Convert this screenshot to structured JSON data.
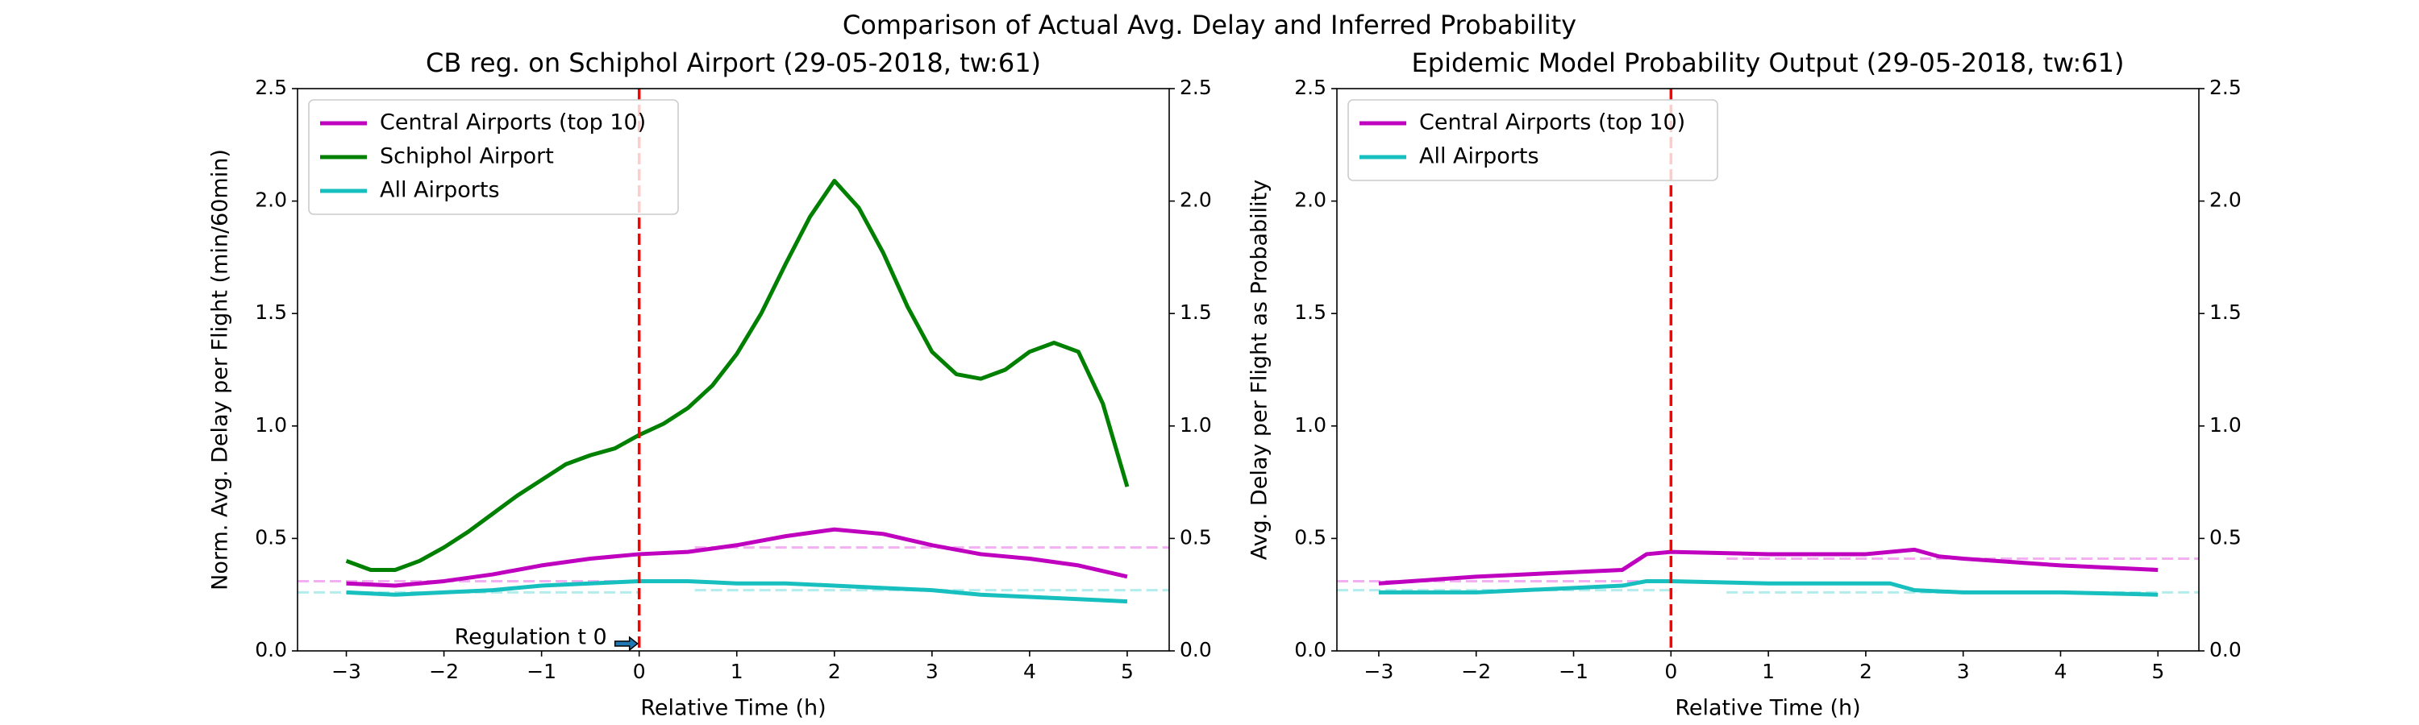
{
  "title": "Comparison of Actual Avg. Delay and Inferred Probability",
  "chart_data": [
    {
      "type": "line",
      "title": "CB reg. on Schiphol Airport (29-05-2018, tw:61)",
      "xlabel": "Relative Time (h)",
      "ylabel": "Norm. Avg. Delay per Flight (min/60min)",
      "xlim": [
        -3.5,
        5.43
      ],
      "ylim": [
        0,
        2.5
      ],
      "y2lim": [
        0,
        2.5
      ],
      "xticks": [
        {
          "value": -3,
          "label": "−3"
        },
        {
          "value": -2,
          "label": "−2"
        },
        {
          "value": -1,
          "label": "−1"
        },
        0,
        1,
        2,
        3,
        4,
        5
      ],
      "yticks": [
        {
          "value": 0,
          "label": "0.0"
        },
        {
          "value": 0.5,
          "label": "0.5"
        },
        {
          "value": 1,
          "label": "1.0"
        },
        {
          "value": 1.5,
          "label": "1.5"
        },
        {
          "value": 2,
          "label": "2.0"
        },
        {
          "value": 2.5,
          "label": "2.5"
        }
      ],
      "y2ticks": [
        {
          "value": 0,
          "label": "0.0"
        },
        {
          "value": 0.5,
          "label": "0.5"
        },
        {
          "value": 1,
          "label": "1.0"
        },
        {
          "value": 1.5,
          "label": "1.5"
        },
        {
          "value": 2,
          "label": "2.0"
        },
        {
          "value": 2.5,
          "label": "2.5"
        }
      ],
      "legend": "upper left",
      "vline": {
        "x": 0,
        "color": "#ff0000"
      },
      "annotation": "Regulation t  0",
      "series": [
        {
          "name": "Central Airports (top 10)",
          "color": "#bf00bf",
          "x": [
            -3,
            -2.5,
            -2,
            -1.5,
            -1,
            -0.5,
            0,
            0.5,
            1,
            1.5,
            2,
            2.5,
            3,
            3.5,
            4,
            4.5,
            5
          ],
          "values": [
            0.3,
            0.29,
            0.31,
            0.34,
            0.38,
            0.41,
            0.43,
            0.44,
            0.47,
            0.51,
            0.54,
            0.52,
            0.47,
            0.43,
            0.41,
            0.38,
            0.33
          ]
        },
        {
          "name": "Schiphol Airport",
          "color": "#008000",
          "x": [
            -3,
            -2.75,
            -2.5,
            -2.25,
            -2,
            -1.75,
            -1.5,
            -1.25,
            -1,
            -0.75,
            -0.5,
            -0.25,
            0,
            0.25,
            0.5,
            0.75,
            1,
            1.25,
            1.5,
            1.75,
            2,
            2.25,
            2.5,
            2.75,
            3,
            3.25,
            3.5,
            3.75,
            4,
            4.25,
            4.5,
            4.75,
            5
          ],
          "values": [
            0.4,
            0.36,
            0.36,
            0.4,
            0.46,
            0.53,
            0.61,
            0.69,
            0.76,
            0.83,
            0.87,
            0.9,
            0.96,
            1.01,
            1.08,
            1.18,
            1.32,
            1.5,
            1.72,
            1.93,
            2.09,
            1.97,
            1.77,
            1.53,
            1.33,
            1.23,
            1.21,
            1.25,
            1.33,
            1.37,
            1.33,
            1.1,
            0.73
          ]
        },
        {
          "name": "All Airports",
          "color": "#17bfbf",
          "x": [
            -3,
            -2.5,
            -2,
            -1.5,
            -1,
            -0.5,
            0,
            0.5,
            1,
            1.5,
            2,
            2.5,
            3,
            3.5,
            4,
            4.5,
            5
          ],
          "values": [
            0.26,
            0.25,
            0.26,
            0.27,
            0.29,
            0.3,
            0.31,
            0.31,
            0.3,
            0.3,
            0.29,
            0.28,
            0.27,
            0.25,
            0.24,
            0.23,
            0.22
          ]
        }
      ],
      "reference_lines": [
        {
          "color": "#f2b0f2",
          "x": [
            -3.5,
            0
          ],
          "values": [
            0.31,
            0.31
          ]
        },
        {
          "color": "#f2b0f2",
          "x": [
            0.57,
            5.43
          ],
          "values": [
            0.46,
            0.46
          ]
        },
        {
          "color": "#b3ecec",
          "x": [
            -3.5,
            0
          ],
          "values": [
            0.26,
            0.26
          ]
        },
        {
          "color": "#b3ecec",
          "x": [
            0.57,
            5.43
          ],
          "values": [
            0.27,
            0.27
          ]
        }
      ]
    },
    {
      "type": "line",
      "title": "Epidemic Model Probability Output (29-05-2018, tw:61)",
      "xlabel": "Relative Time (h)",
      "ylabel": "Avg. Delay per Flight as Probability",
      "xlim": [
        -3.43,
        5.42
      ],
      "ylim": [
        0,
        2.5
      ],
      "y2lim": [
        0,
        2.5
      ],
      "xticks": [
        {
          "value": -3,
          "label": "−3"
        },
        {
          "value": -2,
          "label": "−2"
        },
        {
          "value": -1,
          "label": "−1"
        },
        0,
        1,
        2,
        3,
        4,
        5
      ],
      "yticks": [
        {
          "value": 0,
          "label": "0.0"
        },
        {
          "value": 0.5,
          "label": "0.5"
        },
        {
          "value": 1,
          "label": "1.0"
        },
        {
          "value": 1.5,
          "label": "1.5"
        },
        {
          "value": 2,
          "label": "2.0"
        },
        {
          "value": 2.5,
          "label": "2.5"
        }
      ],
      "y2ticks": [
        {
          "value": 0,
          "label": "0.0"
        },
        {
          "value": 0.5,
          "label": "0.5"
        },
        {
          "value": 1,
          "label": "1.0"
        },
        {
          "value": 1.5,
          "label": "1.5"
        },
        {
          "value": 2,
          "label": "2.0"
        },
        {
          "value": 2.5,
          "label": "2.5"
        }
      ],
      "legend": "upper left",
      "vline": {
        "x": 0,
        "color": "#ff0000"
      },
      "series": [
        {
          "name": "Central Airports (top 10)",
          "color": "#bf00bf",
          "x": [
            -3,
            -2,
            -1,
            -0.5,
            -0.25,
            0,
            1,
            2,
            2.25,
            2.5,
            2.75,
            3,
            4,
            5
          ],
          "values": [
            0.3,
            0.33,
            0.35,
            0.36,
            0.43,
            0.44,
            0.43,
            0.43,
            0.44,
            0.45,
            0.42,
            0.41,
            0.38,
            0.36
          ]
        },
        {
          "name": "All Airports",
          "color": "#17bfbf",
          "x": [
            -3,
            -2,
            -1,
            -0.5,
            -0.25,
            0,
            1,
            2,
            2.25,
            2.5,
            3,
            4,
            5
          ],
          "values": [
            0.26,
            0.26,
            0.28,
            0.29,
            0.31,
            0.31,
            0.3,
            0.3,
            0.3,
            0.27,
            0.26,
            0.26,
            0.25
          ]
        }
      ],
      "reference_lines": [
        {
          "color": "#f2b0f2",
          "x": [
            -3.43,
            0
          ],
          "values": [
            0.31,
            0.31
          ]
        },
        {
          "color": "#f2b0f2",
          "x": [
            0.57,
            5.42
          ],
          "values": [
            0.41,
            0.41
          ]
        },
        {
          "color": "#b3ecec",
          "x": [
            -3.43,
            0
          ],
          "values": [
            0.27,
            0.27
          ]
        },
        {
          "color": "#b3ecec",
          "x": [
            0.57,
            5.42
          ],
          "values": [
            0.26,
            0.26
          ]
        }
      ]
    }
  ]
}
